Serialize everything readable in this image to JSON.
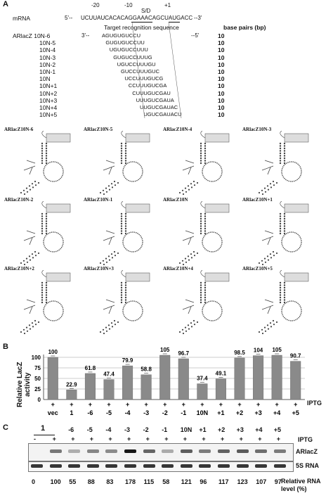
{
  "panelA": {
    "letter": "A",
    "mrna_label": "mRNA",
    "mrna_prefix": "5'--",
    "mrna_seq": "UCUUAUCACACAGGAAACAGCUAUGACC",
    "mrna_suffix": "--3'",
    "pos_m20": "-20",
    "pos_m10": "-10",
    "pos_p1": "+1",
    "sd_label": "S/D",
    "target_label": "Target recognition sequence",
    "bp_header": "base pairs (bp)",
    "seq_prefix": "3'--",
    "seq_suffix": "--5'",
    "constructs": [
      {
        "name": "ARlacZ 10N-6",
        "seq": "AGUGUGUCCU",
        "bp": "10"
      },
      {
        "name": "10N-5",
        "seq": "GUGUGUCCUU",
        "bp": "10"
      },
      {
        "name": "10N-4",
        "seq": "UGUGUCCUUU",
        "bp": "10"
      },
      {
        "name": "10N-3",
        "seq": "GUGUCCUUUG",
        "bp": "10"
      },
      {
        "name": "10N-2",
        "seq": "UGUCCUUUGU",
        "bp": "10"
      },
      {
        "name": "10N-1",
        "seq": "GUCCUUUGUC",
        "bp": "10"
      },
      {
        "name": "10N",
        "seq": "UCCUUUGUCG",
        "bp": "10"
      },
      {
        "name": "10N+1",
        "seq": "CCUUUGUCGA",
        "bp": "10"
      },
      {
        "name": "10N+2",
        "seq": "CUUUGUCGAU",
        "bp": "10"
      },
      {
        "name": "10N+3",
        "seq": "UUUGUCGAUA",
        "bp": "10"
      },
      {
        "name": "10N+4",
        "seq": "UUGUCGAUAC",
        "bp": "10"
      },
      {
        "name": "10N+5",
        "seq": "UGUCGAUACU",
        "bp": "10"
      }
    ],
    "structures": [
      "ARlacZ10N-6",
      "ARlacZ10N-5",
      "ARlacZ10N-4",
      "ARlacZ10N-3",
      "ARlacZ10N-2",
      "ARlacZ10N-1",
      "ARlacZ10N",
      "ARlacZ10N+1",
      "ARlacZ10N+2",
      "ARlacZ10N+3",
      "ARlacZ10N+4",
      "ARlacZ10N+5"
    ]
  },
  "chart_data": {
    "type": "bar",
    "title": "",
    "ylabel": "Relative LacZ activity",
    "xlabel": "",
    "ylim": [
      0,
      100
    ],
    "yticks": [
      "0",
      "25",
      "50",
      "75",
      "100"
    ],
    "categories": [
      "vec",
      "1",
      "-6",
      "-5",
      "-4",
      "-3",
      "-2",
      "-1",
      "10N",
      "+1",
      "+2",
      "+3",
      "+4",
      "+5"
    ],
    "values": [
      100,
      22.9,
      61.8,
      47.4,
      79.9,
      58.8,
      105,
      96.7,
      37.4,
      49.1,
      98.5,
      104,
      105,
      90.7
    ],
    "value_labels": [
      "100",
      "22.9",
      "61.8",
      "47.4",
      "79.9",
      "58.8",
      "105",
      "96.7",
      "37.4",
      "49.1",
      "98.5",
      "104",
      "105",
      "90.7"
    ],
    "iptg_row": [
      "+",
      "+",
      "+",
      "+",
      "+",
      "+",
      "+",
      "+",
      "+",
      "+",
      "+",
      "+",
      "+",
      "+"
    ],
    "iptg_label": "IPTG",
    "colors": {
      "vec": "#8a8a8a",
      "bars": "#8a8a8a",
      "one": "#9a9a9a"
    }
  },
  "panelB": {
    "letter": "B"
  },
  "panelC": {
    "letter": "C",
    "group_one": "1",
    "lane_heads": [
      "-6",
      "-5",
      "-4",
      "-3",
      "-2",
      "-1",
      "10N",
      "+1",
      "+2",
      "+3",
      "+4",
      "+5"
    ],
    "iptg_marks": [
      "-",
      "+",
      "+",
      "+",
      "+",
      "+",
      "+",
      "+",
      "+",
      "+",
      "+",
      "+",
      "+",
      "+"
    ],
    "iptg_label": "IPTG",
    "band1_label": "ARlacZ",
    "band2_label": "5S RNA",
    "levels": [
      "0",
      "100",
      "55",
      "88",
      "83",
      "178",
      "115",
      "58",
      "121",
      "96",
      "117",
      "123",
      "107",
      "97"
    ],
    "levels_label": "Relative RNA level (%)"
  }
}
